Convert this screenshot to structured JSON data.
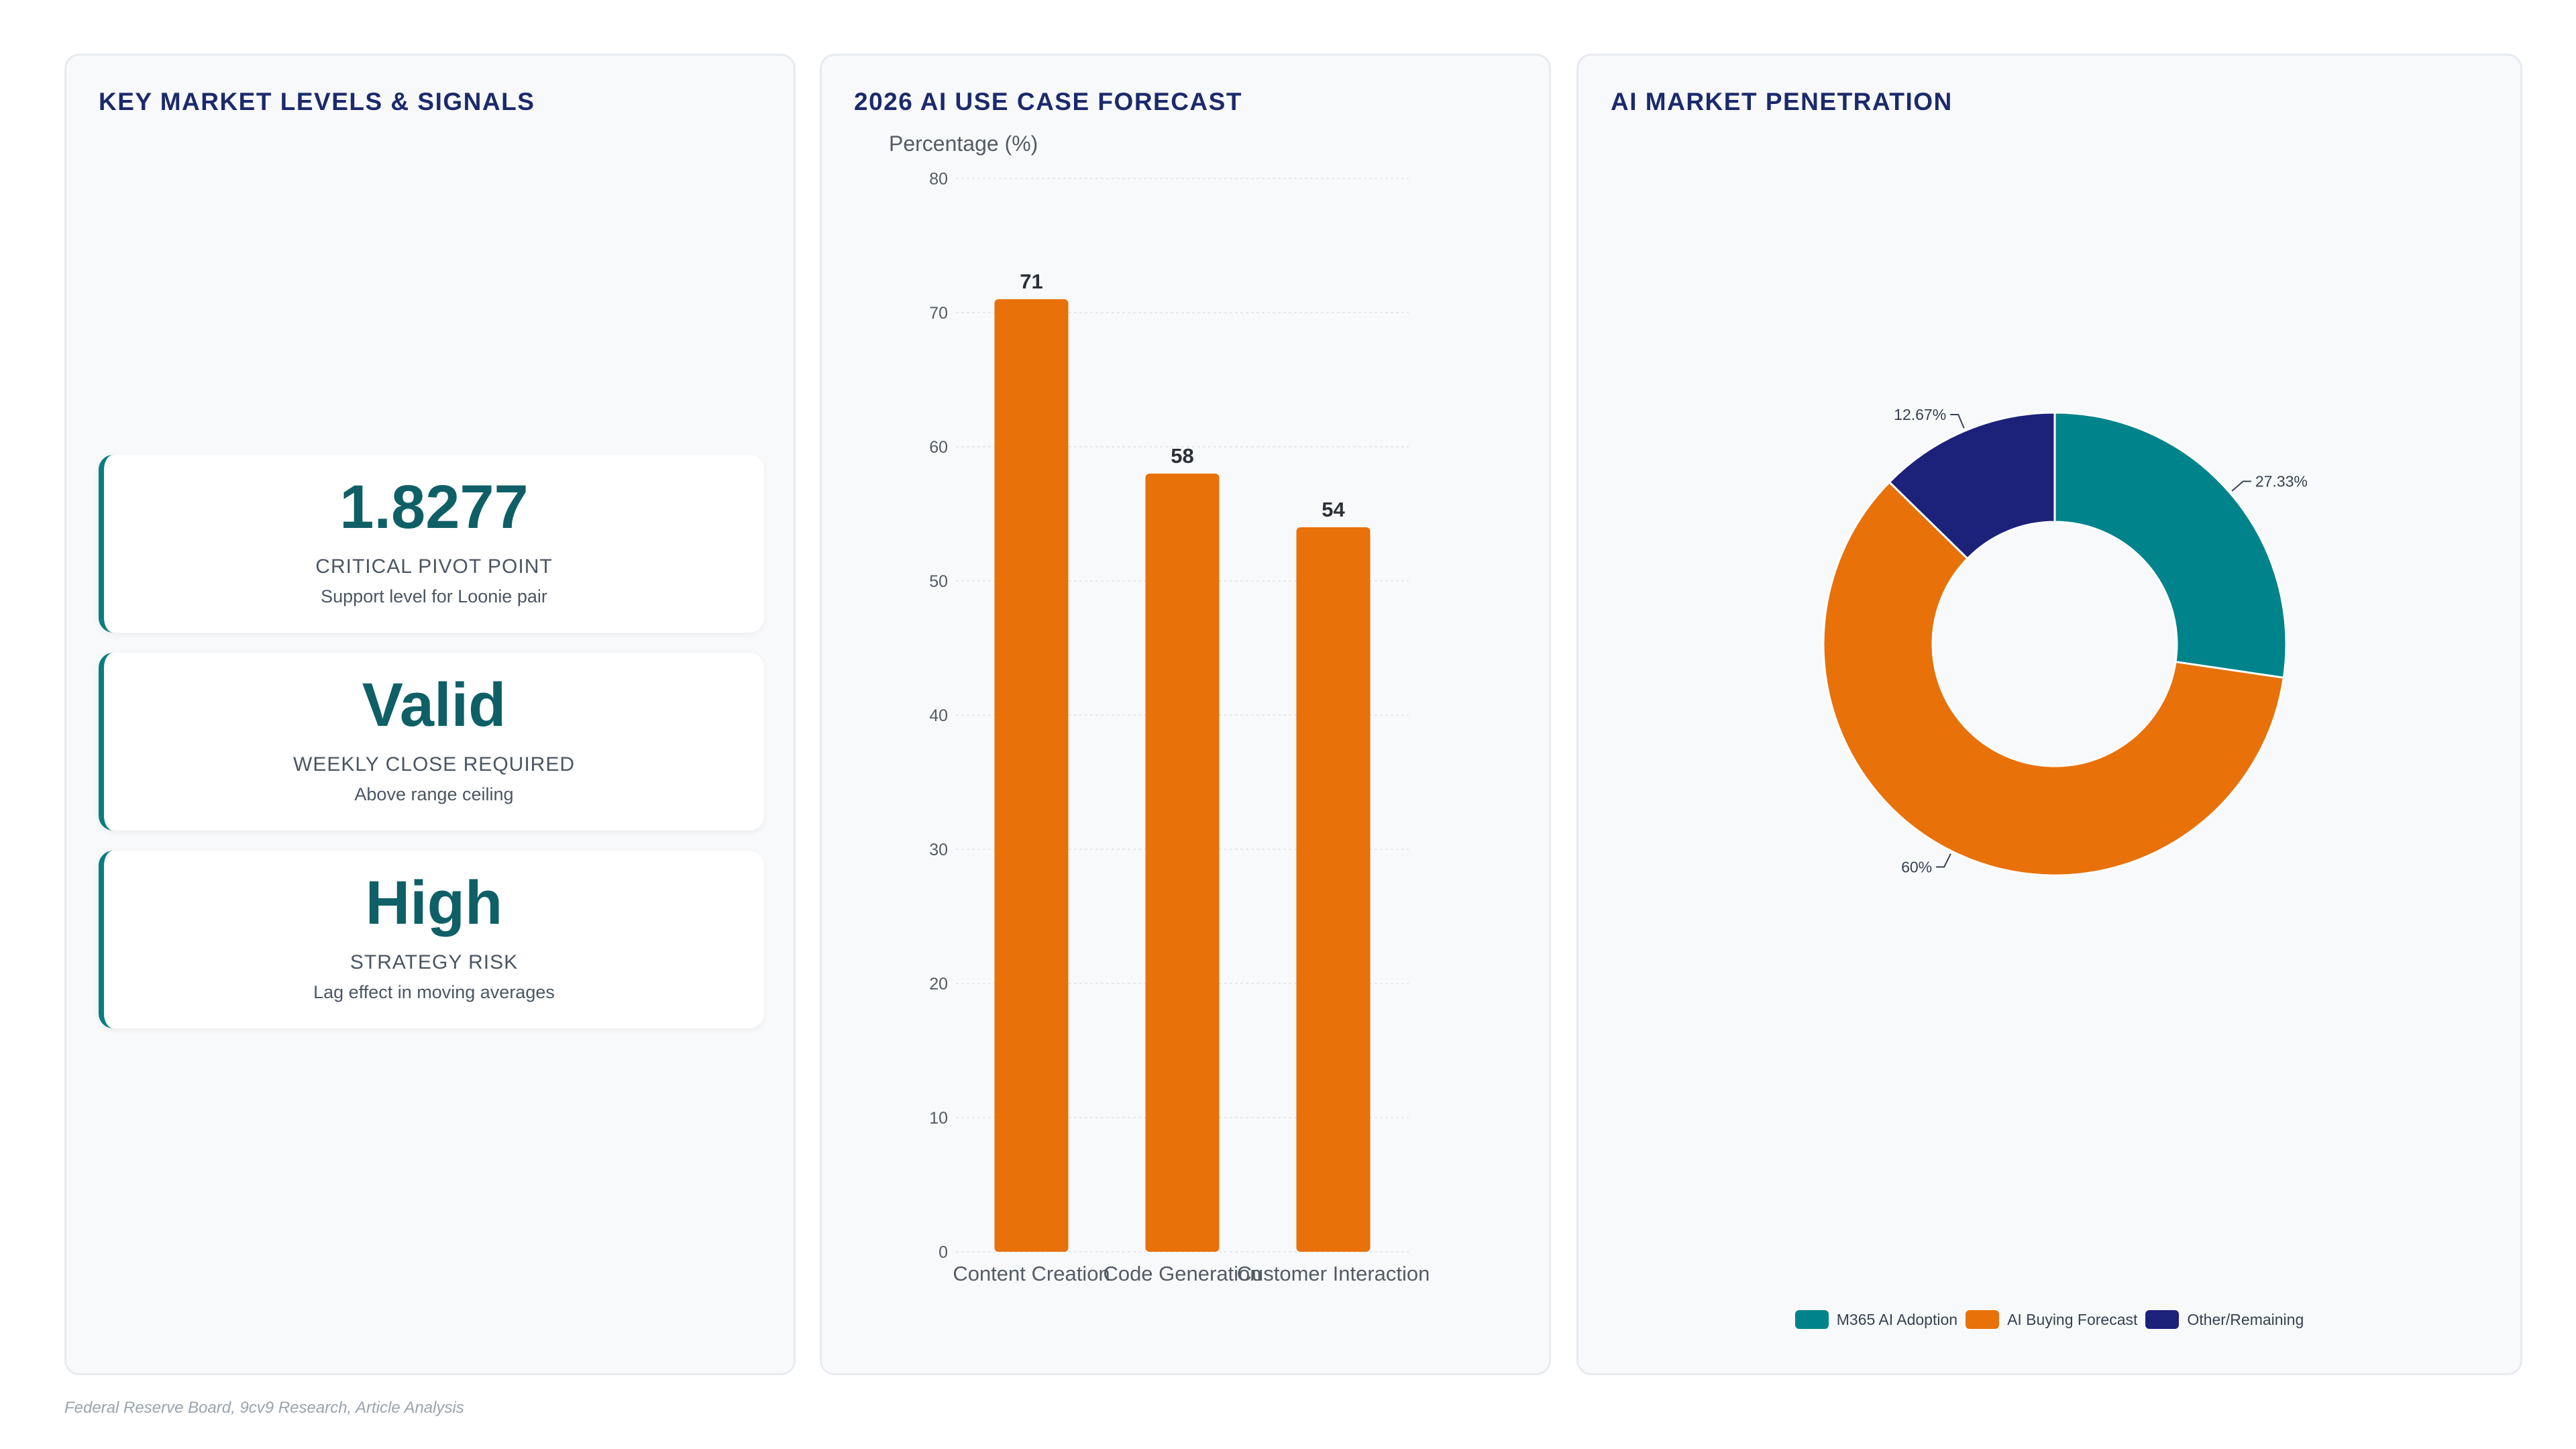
{
  "signals": {
    "title": "KEY MARKET LEVELS & SIGNALS",
    "cards": [
      {
        "value": "1.8277",
        "label": "CRITICAL PIVOT POINT",
        "desc": "Support level for Loonie pair"
      },
      {
        "value": "Valid",
        "label": "WEEKLY CLOSE REQUIRED",
        "desc": "Above range ceiling"
      },
      {
        "value": "High",
        "label": "STRATEGY RISK",
        "desc": "Lag effect in moving averages"
      }
    ],
    "accent": "#0b7d80"
  },
  "forecast": {
    "title": "2026 AI USE CASE FORECAST"
  },
  "penetration": {
    "title": "AI MARKET PENETRATION"
  },
  "footer": {
    "source": "Federal Reserve Board, 9cv9 Research, Article Analysis"
  },
  "chart_data": [
    {
      "type": "bar",
      "title": "2026 AI USE CASE FORECAST",
      "ylabel": "Percentage (%)",
      "xlabel": "",
      "categories": [
        "Content Creation",
        "Code Generation",
        "Customer Interaction"
      ],
      "values": [
        71,
        58,
        54
      ],
      "ylim": [
        0,
        80
      ],
      "yticks": [
        0,
        10,
        20,
        30,
        40,
        50,
        60,
        70,
        80
      ],
      "grid": true,
      "color": "#e8710a"
    },
    {
      "type": "pie",
      "title": "AI MARKET PENETRATION",
      "donut": true,
      "labels": [
        "M365 AI Adoption",
        "AI Buying Forecast",
        "Other/Remaining"
      ],
      "values": [
        27.33,
        60,
        12.67
      ],
      "value_labels": [
        "27.33%",
        "60%",
        "12.67%"
      ],
      "colors": [
        "#00838a",
        "#e8710a",
        "#1c227a"
      ],
      "legend": "bottom"
    }
  ]
}
